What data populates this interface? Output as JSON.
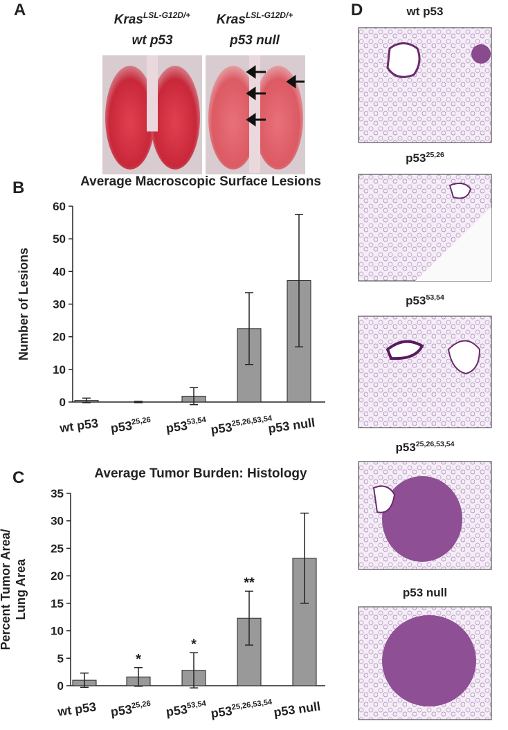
{
  "panel_labels": [
    "A",
    "B",
    "C",
    "D"
  ],
  "panel_a": {
    "images": [
      {
        "gene": "Kras",
        "sup": "LSL-G12D/+",
        "genotype": "wt p53"
      },
      {
        "gene": "Kras",
        "sup": "LSL-G12D/+",
        "genotype": "p53 null"
      }
    ]
  },
  "panel_d": {
    "titles": [
      {
        "text": "wt p53"
      },
      {
        "text": "p53",
        "sup": "25,26"
      },
      {
        "text": "p53",
        "sup": "53,54"
      },
      {
        "text": "p53",
        "sup": "25,26,53,54"
      },
      {
        "text": "p53 null"
      }
    ]
  },
  "chart_data": [
    {
      "type": "bar",
      "title": "Average Macroscopic Surface Lesions",
      "ylabel": [
        "Number of Lesions"
      ],
      "categories": [
        {
          "text": "wt p53"
        },
        {
          "text": "p53",
          "sup": "25,26"
        },
        {
          "text": "p53",
          "sup": "53,54"
        },
        {
          "text": "p53",
          "sup": "25,26,53,54"
        },
        {
          "text": "p53 null"
        }
      ],
      "values": [
        0.5,
        0,
        1.8,
        22.5,
        37.2
      ],
      "errors": [
        0.7,
        0.2,
        2.6,
        11,
        20.3
      ],
      "color": "#999999",
      "ylim": [
        0,
        60
      ],
      "yticks": [
        0,
        10,
        20,
        30,
        40,
        50,
        60
      ]
    },
    {
      "type": "bar",
      "title": "Average Tumor Burden: Histology",
      "ylabel": [
        "Percent Tumor Area/",
        "Lung Area"
      ],
      "categories": [
        {
          "text": "wt p53"
        },
        {
          "text": "p53",
          "sup": "25,26"
        },
        {
          "text": "p53",
          "sup": "53,54"
        },
        {
          "text": "p53",
          "sup": "25,26,53,54"
        },
        {
          "text": "p53 null"
        }
      ],
      "values": [
        1.0,
        1.6,
        2.8,
        12.3,
        23.2
      ],
      "errors": [
        1.3,
        1.7,
        3.2,
        4.9,
        8.2
      ],
      "annotations": [
        null,
        "*",
        "*",
        "**",
        null
      ],
      "color": "#999999",
      "ylim": [
        0,
        35
      ],
      "yticks": [
        0,
        5,
        10,
        15,
        20,
        25,
        30,
        35
      ]
    }
  ]
}
